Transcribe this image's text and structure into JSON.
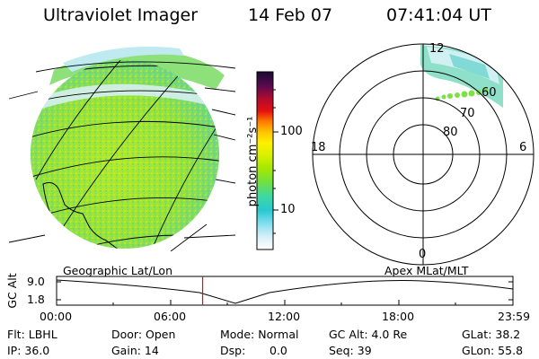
{
  "header": {
    "title": "Ultraviolet Imager",
    "date": "14 Feb 07",
    "time": "07:41:04 UT"
  },
  "colorbar": {
    "unit_label": "photon cm⁻²s⁻¹",
    "ticks": [
      "100",
      "10"
    ],
    "colors": [
      "#1a0a30",
      "#5a0a50",
      "#b00a30",
      "#e41010",
      "#ff7a00",
      "#ffc400",
      "#fff000",
      "#d8f000",
      "#a8e800",
      "#70e040",
      "#40d8a0",
      "#28c8d0",
      "#8ae0f0",
      "#d8f0f8",
      "#ffffff"
    ]
  },
  "polar_plot": {
    "top_label": "12",
    "bottom_label": "0",
    "left_label": "18",
    "right_label": "6",
    "ring_labels": [
      "60",
      "70",
      "80"
    ]
  },
  "timeline": {
    "left_title": "Geographic Lat/Lon",
    "right_title": "Apex MLat/MLT",
    "axis_label": "GC Alt",
    "y_ticks": [
      "9.0",
      "1.8"
    ],
    "x_ticks": [
      "00:00",
      "06:00",
      "12:00",
      "18:00",
      "23:59"
    ],
    "current_time_fraction": 0.32
  },
  "status": {
    "filter": "Flt: LBHL",
    "door": "Door: Open",
    "mode": "Mode: Normal",
    "gc_alt": "GC Alt: 4.0 Re",
    "glat": "GLat: 38.2",
    "ip": "IP: 36.0",
    "gain": "Gain: 14",
    "dsp": "Dsp:",
    "dsp_value": "0.0",
    "seq": "Seq: 39",
    "glon": "GLon: 55.8"
  }
}
